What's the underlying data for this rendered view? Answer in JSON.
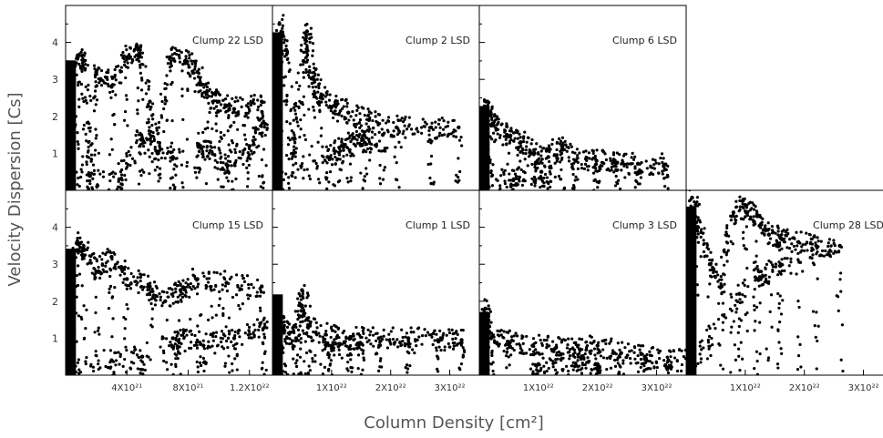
{
  "figure": {
    "xlabel": "Column Density [cm²]",
    "ylabel": "Velocity Dispersion [Cs]",
    "yticks": [
      "1",
      "2",
      "3",
      "4"
    ]
  },
  "chart_data": [
    {
      "type": "scatter",
      "title": "Clump 22 LSD",
      "xlim": [
        0,
        1.35e+22
      ],
      "ylim": [
        0,
        5
      ],
      "xticks": [],
      "yticks": [
        1,
        2,
        3,
        4
      ],
      "series": [
        {
          "values": [
            [
              2e+20,
              0.2
            ],
            [
              8e+20,
              3.6
            ],
            [
              1.2e+21,
              3.5
            ],
            [
              1.6e+21,
              0.4
            ],
            [
              2e+21,
              3.2
            ],
            [
              3e+21,
              2.8
            ],
            [
              4e+21,
              3.6
            ],
            [
              4.8e+21,
              3.7
            ],
            [
              5.5e+21,
              2.4
            ],
            [
              6e+21,
              1.0
            ],
            [
              6.8e+21,
              3.6
            ],
            [
              7.8e+21,
              3.5
            ],
            [
              8.6e+21,
              3.2
            ],
            [
              9.2e+21,
              2.6
            ],
            [
              1e+22,
              2.4
            ],
            [
              1.1e+22,
              2.2
            ],
            [
              1.28e+22,
              2.4
            ],
            [
              8.8e+21,
              1.2
            ],
            [
              1.05e+22,
              0.7
            ],
            [
              1.2e+22,
              1.2
            ],
            [
              1.3e+22,
              1.8
            ],
            [
              7e+21,
              0.9
            ],
            [
              5e+21,
              1.4
            ],
            [
              3.5e+21,
              0.3
            ]
          ]
        }
      ]
    },
    {
      "type": "scatter",
      "title": "Clump 2 LSD",
      "xlim": [
        0,
        3e+22
      ],
      "ylim": [
        0,
        5
      ],
      "xticks": [],
      "yticks": [],
      "series": [
        {
          "values": [
            [
              5e+20,
              0.1
            ],
            [
              1e+21,
              4.5
            ],
            [
              2e+21,
              3.8
            ],
            [
              3e+21,
              1.0
            ],
            [
              4.5e+21,
              3.5
            ],
            [
              5e+21,
              4.3
            ],
            [
              6e+21,
              3.0
            ],
            [
              7e+21,
              2.5
            ],
            [
              9e+21,
              2.3
            ],
            [
              1.1e+22,
              2.1
            ],
            [
              1.4e+22,
              1.9
            ],
            [
              1.8e+22,
              1.7
            ],
            [
              2.3e+22,
              1.7
            ],
            [
              2.7e+22,
              1.7
            ],
            [
              1e+22,
              1.2
            ],
            [
              1.6e+22,
              1.5
            ],
            [
              8e+21,
              0.9
            ],
            [
              1.3e+22,
              1.4
            ]
          ]
        }
      ]
    },
    {
      "type": "scatter",
      "title": "Clump 6 LSD",
      "xlim": [
        0,
        3e+22
      ],
      "ylim": [
        0,
        5
      ],
      "xticks": [],
      "yticks": [],
      "series": [
        {
          "values": [
            [
              5e+20,
              0.2
            ],
            [
              1e+21,
              2.4
            ],
            [
              2e+21,
              1.8
            ],
            [
              4e+21,
              1.5
            ],
            [
              6e+21,
              1.3
            ],
            [
              8e+21,
              1.0
            ],
            [
              1e+22,
              0.9
            ],
            [
              1.2e+22,
              1.2
            ],
            [
              1.4e+22,
              0.8
            ],
            [
              1.7e+22,
              0.8
            ],
            [
              2e+22,
              0.75
            ],
            [
              2.3e+22,
              0.72
            ],
            [
              2.7e+22,
              0.7
            ],
            [
              9e+21,
              0.5
            ],
            [
              5e+21,
              0.3
            ]
          ]
        }
      ]
    },
    {
      "type": "scatter",
      "title": "Clump 15 LSD",
      "xlim": [
        0,
        1.35e+22
      ],
      "ylim": [
        0,
        5
      ],
      "xticks": [
        "4X10²¹",
        "8X10²¹",
        "1.2X10²²"
      ],
      "yticks": [
        1,
        2,
        3,
        4
      ],
      "series": [
        {
          "values": [
            [
              2e+20,
              0.1
            ],
            [
              8e+20,
              3.6
            ],
            [
              1.2e+21,
              3.4
            ],
            [
              2e+21,
              2.8
            ],
            [
              3e+21,
              3.2
            ],
            [
              4e+21,
              2.6
            ],
            [
              5.5e+21,
              2.4
            ],
            [
              6.5e+21,
              2.0
            ],
            [
              7.5e+21,
              2.3
            ],
            [
              8.6e+21,
              2.6
            ],
            [
              1.05e+22,
              2.5
            ],
            [
              1.28e+22,
              2.4
            ],
            [
              7e+21,
              1.0
            ],
            [
              9e+21,
              0.8
            ],
            [
              1.1e+22,
              1.0
            ],
            [
              1.3e+22,
              1.3
            ],
            [
              5e+21,
              0.5
            ],
            [
              3e+21,
              0.4
            ]
          ]
        }
      ]
    },
    {
      "type": "scatter",
      "title": "Clump 1 LSD",
      "xlim": [
        0,
        3.5e+22
      ],
      "ylim": [
        0,
        5
      ],
      "xticks": [
        "1X10²²",
        "2X10²²",
        "3X10²²"
      ],
      "yticks": [],
      "series": [
        {
          "values": [
            [
              5e+20,
              0.1
            ],
            [
              1e+21,
              1.6
            ],
            [
              2e+21,
              1.2
            ],
            [
              4e+21,
              1.0
            ],
            [
              5e+21,
              2.3
            ],
            [
              6e+21,
              1.3
            ],
            [
              9e+21,
              1.1
            ],
            [
              1.3e+22,
              1.0
            ],
            [
              1.8e+22,
              1.0
            ],
            [
              2.3e+22,
              1.0
            ],
            [
              2.8e+22,
              0.95
            ],
            [
              3.2e+22,
              0.95
            ],
            [
              1e+22,
              0.8
            ],
            [
              1.5e+22,
              0.85
            ]
          ]
        }
      ]
    },
    {
      "type": "scatter",
      "title": "Clump 3 LSD",
      "xlim": [
        0,
        3.5e+22
      ],
      "ylim": [
        0,
        5
      ],
      "xticks": [
        "1X10²²",
        "2X10²²",
        "3X10²²"
      ],
      "yticks": [],
      "series": [
        {
          "values": [
            [
              5e+20,
              0.1
            ],
            [
              1e+21,
              1.8
            ],
            [
              2e+21,
              1.0
            ],
            [
              5e+21,
              0.9
            ],
            [
              9e+21,
              0.8
            ],
            [
              1.3e+22,
              0.75
            ],
            [
              1.7e+22,
              0.7
            ],
            [
              2e+22,
              0.8
            ],
            [
              2.4e+22,
              0.6
            ],
            [
              2.8e+22,
              0.5
            ],
            [
              3.2e+22,
              0.4
            ],
            [
              3.6e+22,
              0.4
            ],
            [
              1e+22,
              0.3
            ],
            [
              2e+22,
              0.3
            ]
          ]
        }
      ]
    },
    {
      "type": "scatter",
      "title": "Clump 28 LSD",
      "xlim": [
        0,
        3.5e+22
      ],
      "ylim": [
        0,
        5
      ],
      "xticks": [
        "1X10²²",
        "2X10²²",
        "3X10²²"
      ],
      "yticks": [],
      "series": [
        {
          "values": [
            [
              5e+20,
              0.1
            ],
            [
              1e+21,
              4.8
            ],
            [
              2e+21,
              4.0
            ],
            [
              4e+21,
              3.0
            ],
            [
              6e+21,
              2.4
            ],
            [
              8e+21,
              4.4
            ],
            [
              1e+22,
              4.6
            ],
            [
              1.2e+22,
              4.3
            ],
            [
              1.4e+22,
              3.8
            ],
            [
              1.6e+22,
              3.7
            ],
            [
              1.9e+22,
              3.6
            ],
            [
              2.2e+22,
              3.5
            ],
            [
              2.6e+22,
              3.5
            ],
            [
              1.2e+22,
              2.6
            ],
            [
              1.6e+22,
              3.0
            ],
            [
              9e+21,
              2.2
            ]
          ]
        }
      ]
    }
  ]
}
